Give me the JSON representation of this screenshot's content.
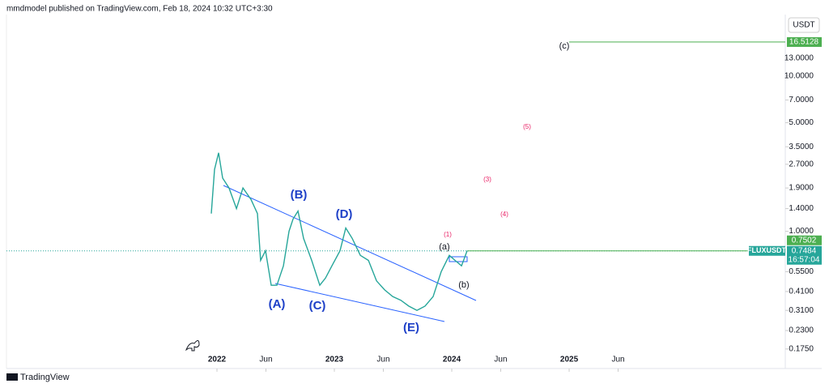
{
  "header": {
    "publisher": "mmdmodel published on TradingView.com, Feb 18, 2024 10:32 UTC+3:30"
  },
  "chart_data": {
    "type": "line",
    "currency": "USDT",
    "symbol": "FLUXUSDT",
    "countdown": "16:57:04",
    "log_scale": true,
    "color": "#26a69a",
    "x": [
      2021.952,
      2021.979,
      2022.014,
      2022.048,
      2022.103,
      2022.166,
      2022.221,
      2022.29,
      2022.345,
      2022.372,
      2022.414,
      2022.462,
      2022.51,
      2022.566,
      2022.614,
      2022.648,
      2022.69,
      2022.738,
      2022.807,
      2022.876,
      2022.924,
      2022.979,
      2023.048,
      2023.097,
      2023.152,
      2023.221,
      2023.29,
      2023.359,
      2023.428,
      2023.497,
      2023.566,
      2023.634,
      2023.703,
      2023.772,
      2023.841,
      2023.91,
      2023.979,
      2024.028,
      2024.083,
      2024.131
    ],
    "values": [
      1.3,
      2.5,
      3.2,
      2.2,
      1.9,
      1.4,
      1.9,
      1.6,
      1.3,
      0.65,
      0.75,
      0.45,
      0.45,
      0.6,
      1.0,
      1.2,
      1.35,
      0.9,
      0.65,
      0.45,
      0.5,
      0.6,
      0.75,
      1.05,
      0.9,
      0.7,
      0.65,
      0.48,
      0.42,
      0.38,
      0.36,
      0.33,
      0.31,
      0.33,
      0.38,
      0.55,
      0.7,
      0.65,
      0.6,
      0.75
    ],
    "xlim": [
      2020.207,
      2026.841
    ],
    "xticks": [
      {
        "value": 2022,
        "label": "2022"
      },
      {
        "value": 2022.417,
        "label": "Jun"
      },
      {
        "value": 2023,
        "label": "2023"
      },
      {
        "value": 2023.417,
        "label": "Jun"
      },
      {
        "value": 2024,
        "label": "2024"
      },
      {
        "value": 2024.417,
        "label": "Jun"
      },
      {
        "value": 2025,
        "label": "2025"
      },
      {
        "value": 2025.417,
        "label": "Jun"
      }
    ],
    "ylim": [
      0.131,
      24.8
    ],
    "yticks": [
      {
        "value": 0.175,
        "label": "0.1750"
      },
      {
        "value": 0.23,
        "label": "0.2300"
      },
      {
        "value": 0.31,
        "label": "0.3100"
      },
      {
        "value": 0.41,
        "label": "0.4100"
      },
      {
        "value": 0.55,
        "label": "0.5500"
      },
      {
        "value": 1.0,
        "label": "1.0000"
      },
      {
        "value": 1.4,
        "label": "1.4000"
      },
      {
        "value": 1.9,
        "label": "1.9000"
      },
      {
        "value": 2.7,
        "label": "2.7000"
      },
      {
        "value": 3.5,
        "label": "3.5000"
      },
      {
        "value": 5.0,
        "label": "5.0000"
      },
      {
        "value": 7.0,
        "label": "7.0000"
      },
      {
        "value": 10.0,
        "label": "10.0000"
      },
      {
        "value": 13.0,
        "label": "13.0000"
      }
    ],
    "target_price": 16.5128,
    "high_price": 0.7502,
    "last_price": 0.7484,
    "waves": [
      "(A)",
      "(B)",
      "(C)",
      "(D)",
      "(E)"
    ],
    "subwaves": [
      "(a)",
      "(b)",
      "(c)"
    ],
    "impulse": [
      "(1)",
      "(3)",
      "(4)",
      "(5)"
    ]
  },
  "footer": {
    "brand": "TradingView"
  }
}
